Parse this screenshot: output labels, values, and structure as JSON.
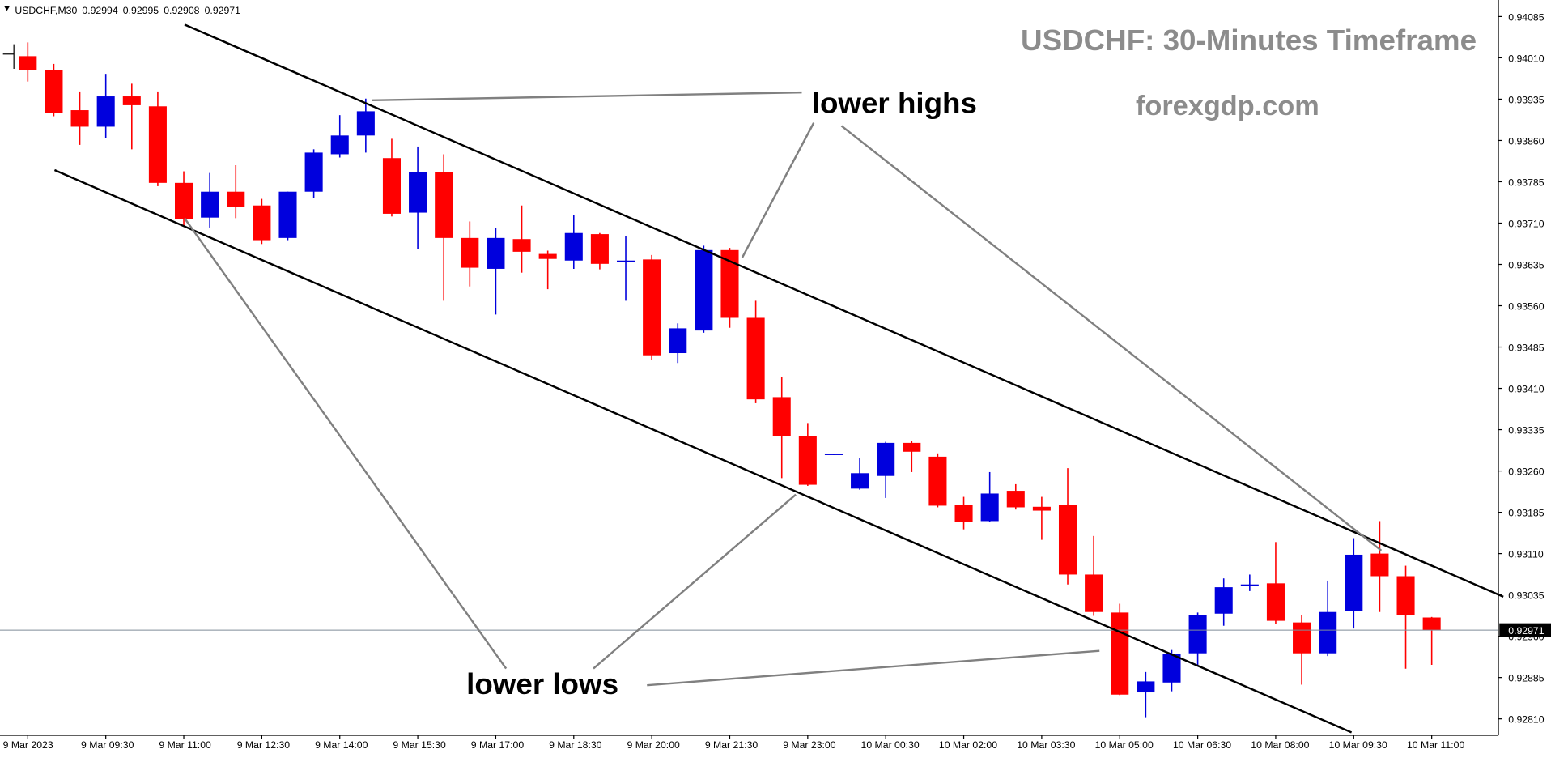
{
  "chart_data": {
    "type": "candlestick",
    "symbol": "USDCHF,M30",
    "title": "USDCHF: 30-Minutes Timeframe",
    "subtitle": "forexgdp.com",
    "annotations": [
      "lower highs",
      "lower lows"
    ],
    "categories": [
      "9 Mar 2023",
      null,
      null,
      "9 Mar 09:30",
      null,
      null,
      "9 Mar 11:00",
      null,
      null,
      "9 Mar 12:30",
      null,
      null,
      "9 Mar 14:00",
      null,
      null,
      "9 Mar 15:30",
      null,
      null,
      "9 Mar 17:00",
      null,
      null,
      "9 Mar 18:30",
      null,
      null,
      "9 Mar 20:00",
      null,
      null,
      "9 Mar 21:30",
      null,
      null,
      "9 Mar 23:00",
      null,
      null,
      "10 Mar 00:30",
      null,
      null,
      "10 Mar 02:00",
      null,
      null,
      "10 Mar 03:30",
      null,
      null,
      "10 Mar 05:00",
      null,
      null,
      "10 Mar 06:30",
      null,
      null,
      "10 Mar 08:00",
      null,
      null,
      "10 Mar 09:30",
      null,
      null,
      "10 Mar 11:00"
    ],
    "open": [
      0.94013,
      0.93988,
      0.93915,
      0.93885,
      0.9394,
      0.93922,
      0.93783,
      0.9372,
      0.93767,
      0.93742,
      0.93683,
      0.93767,
      0.93835,
      0.93869,
      0.93828,
      0.93729,
      0.93802,
      0.93683,
      0.93627,
      0.93681,
      0.93654,
      0.93642,
      0.9369,
      0.9364,
      0.93644,
      0.93474,
      0.93515,
      0.93661,
      0.93538,
      0.93394,
      0.93324,
      0.93289,
      0.93228,
      0.93251,
      0.93311,
      0.93286,
      0.93199,
      0.93169,
      0.93224,
      0.93195,
      0.93199,
      0.93072,
      0.93003,
      0.92858,
      0.92876,
      0.92929,
      0.93001,
      0.93053,
      0.93056,
      0.92985,
      0.92929,
      0.93006,
      0.9311,
      0.93069,
      0.92994
    ],
    "high": [
      0.94038,
      0.93999,
      0.93949,
      0.93981,
      0.93963,
      0.93949,
      0.93804,
      0.93801,
      0.93815,
      0.93754,
      0.93767,
      0.93844,
      0.93906,
      0.93936,
      0.93863,
      0.93849,
      0.93835,
      0.93713,
      0.93701,
      0.93742,
      0.9366,
      0.93724,
      0.93692,
      0.93686,
      0.93652,
      0.93528,
      0.93669,
      0.93665,
      0.93569,
      0.93431,
      0.93347,
      0.93291,
      0.93283,
      0.93313,
      0.93315,
      0.93292,
      0.93213,
      0.93258,
      0.93236,
      0.93213,
      0.93265,
      0.93142,
      0.93019,
      0.92895,
      0.92935,
      0.93003,
      0.93065,
      0.93072,
      0.93131,
      0.92999,
      0.93061,
      0.93138,
      0.93169,
      0.93088,
      0.92995
    ],
    "low": [
      0.93967,
      0.93904,
      0.93852,
      0.93865,
      0.93844,
      0.93777,
      0.93704,
      0.93702,
      0.93719,
      0.93672,
      0.93679,
      0.93756,
      0.93829,
      0.93838,
      0.93722,
      0.93663,
      0.93569,
      0.93595,
      0.93544,
      0.9362,
      0.9359,
      0.93627,
      0.93626,
      0.93569,
      0.93461,
      0.93456,
      0.93511,
      0.9352,
      0.93383,
      0.93247,
      0.93233,
      0.93289,
      0.93226,
      0.93211,
      0.93258,
      0.93194,
      0.93154,
      0.93167,
      0.9319,
      0.93135,
      0.93054,
      0.92997,
      0.92853,
      0.92813,
      0.9286,
      0.92908,
      0.92979,
      0.93042,
      0.92983,
      0.92872,
      0.92924,
      0.92974,
      0.93004,
      0.92901,
      0.92908
    ],
    "close": [
      0.93988,
      0.9391,
      0.93885,
      0.9394,
      0.93924,
      0.93783,
      0.93717,
      0.93767,
      0.9374,
      0.93679,
      0.93767,
      0.93838,
      0.93869,
      0.93913,
      0.93727,
      0.93802,
      0.93683,
      0.93629,
      0.93683,
      0.93658,
      0.93645,
      0.93692,
      0.93636,
      0.93642,
      0.9347,
      0.93519,
      0.93661,
      0.93538,
      0.9339,
      0.93324,
      0.93235,
      0.93291,
      0.93256,
      0.93311,
      0.93295,
      0.93197,
      0.93167,
      0.93219,
      0.93194,
      0.93188,
      0.93072,
      0.93004,
      0.92854,
      0.92878,
      0.92928,
      0.92999,
      0.93049,
      0.93054,
      0.92988,
      0.92929,
      0.93004,
      0.93108,
      0.93069,
      0.92999,
      0.92971
    ],
    "up_color": "#0000dd",
    "down_color": "#ff0000",
    "ylim": [
      0.9278,
      0.94115
    ],
    "yticks": [
      0.94085,
      {
        "value": 0.9401,
        "label": "0.94010"
      },
      0.93935,
      {
        "value": 0.9386,
        "label": "0.93860"
      },
      0.93785,
      {
        "value": 0.9371,
        "label": "0.93710"
      },
      0.93635,
      {
        "value": 0.9356,
        "label": "0.93560"
      },
      0.93485,
      {
        "value": 0.9341,
        "label": "0.93410"
      },
      0.93335,
      {
        "value": 0.9326,
        "label": "0.93260"
      },
      0.93185,
      {
        "value": 0.9311,
        "label": "0.93110"
      },
      0.93035,
      {
        "value": 0.9296,
        "label": "0.92960"
      },
      0.92885,
      {
        "value": 0.9281,
        "label": "0.92810"
      }
    ]
  }
}
